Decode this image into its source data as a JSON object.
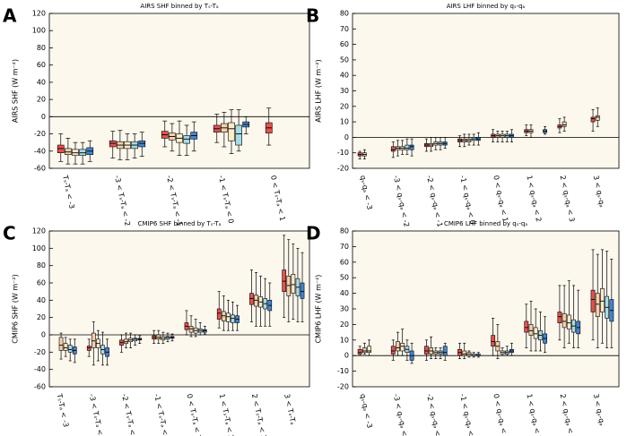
{
  "chart_data": [
    {
      "type": "box",
      "panel": "A",
      "title": "AIRS SHF binned by Tₛ-Tₐ",
      "ylabel": "AIRS SHF (W m⁻²)",
      "categories": [
        "Tₛ-Tₐ < -3",
        "-3 < Tₛ-Tₐ < -2",
        "-2 < Tₛ-Tₐ < -1",
        "-1 < Tₛ-Tₐ < 0",
        "0 < Tₛ-Tₐ < 1"
      ],
      "ylim": [
        -60,
        120
      ],
      "yticks": [
        -60,
        -40,
        -20,
        0,
        20,
        40,
        60,
        80,
        100,
        120
      ],
      "series": [
        {
          "color": "#e8504c",
          "values": [
            [
              -52,
              -42,
              -37,
              -33,
              -20
            ],
            [
              -48,
              -35,
              -31,
              -28,
              -17
            ],
            [
              -35,
              -25,
              -21,
              -17,
              -5
            ],
            [
              -30,
              -18,
              -14,
              -10,
              3
            ],
            [
              -33,
              -19,
              -13,
              -7,
              10
            ]
          ]
        },
        {
          "color": "#f8cfa8",
          "values": [
            [
              -55,
              -44,
              -41,
              -37,
              -25
            ],
            [
              -50,
              -37,
              -33,
              -29,
              -16
            ],
            [
              -40,
              -27,
              -23,
              -19,
              -8
            ],
            [
              -35,
              -18,
              -13,
              -8,
              5
            ],
            null
          ]
        },
        {
          "color": "#fdebc9",
          "values": [
            [
              -55,
              -45,
              -42,
              -38,
              -30
            ],
            [
              -50,
              -37,
              -33,
              -29,
              -20
            ],
            [
              -45,
              -30,
              -25,
              -20,
              -5
            ],
            [
              -43,
              -28,
              -14,
              -7,
              8
            ],
            null
          ]
        },
        {
          "color": "#a6dbe8",
          "values": [
            [
              -55,
              -45,
              -42,
              -38,
              -30
            ],
            [
              -48,
              -37,
              -33,
              -29,
              -20
            ],
            [
              -45,
              -31,
              -26,
              -22,
              -10
            ],
            [
              -40,
              -33,
              -20,
              -10,
              8
            ],
            null
          ]
        },
        {
          "color": "#3f86d4",
          "values": [
            [
              -52,
              -44,
              -40,
              -36,
              -28
            ],
            [
              -46,
              -35,
              -31,
              -28,
              -18
            ],
            [
              -40,
              -26,
              -22,
              -18,
              -6
            ],
            [
              -20,
              -12,
              -9,
              -6,
              0
            ],
            null
          ]
        }
      ]
    },
    {
      "type": "box",
      "panel": "B",
      "title": "AIRS LHF binned by qₛ-qₐ",
      "ylabel": "AIRS LHF (W m⁻²)",
      "categories": [
        "qₛ-qₐ < -3",
        "-3 < qₛ-qₐ < -2",
        "-2 < qₛ-qₐ < -1",
        "-1 < qₛ-qₐ < 0",
        "0 < qₛ-qₐ < 1",
        "1 < qₛ-qₐ < 2",
        "2 < qₛ-qₐ < 3",
        "3 < qₛ-qₐ"
      ],
      "ylim": [
        -20,
        80
      ],
      "yticks": [
        -20,
        -10,
        0,
        10,
        20,
        30,
        40,
        50,
        60,
        70,
        80
      ],
      "series": [
        {
          "color": "#e8504c",
          "values": [
            [
              -14,
              -12,
              -11,
              -10,
              -9
            ],
            [
              -13,
              -9,
              -8,
              -6,
              -3
            ],
            [
              -9,
              -6,
              -5,
              -4,
              -1
            ],
            [
              -6,
              -3,
              -2,
              -1,
              1
            ],
            [
              -3,
              0,
              1,
              2,
              5
            ],
            [
              1,
              3,
              4,
              5,
              8
            ],
            [
              3,
              6,
              7,
              8,
              12
            ],
            [
              4,
              10,
              12,
              13,
              18
            ]
          ]
        },
        {
          "color": "#f8cfa8",
          "values": [
            [
              -14,
              -12,
              -11,
              -10,
              -8
            ],
            [
              -12,
              -8,
              -7,
              -6,
              -2
            ],
            [
              -9,
              -6,
              -5,
              -4,
              0
            ],
            [
              -6,
              -3,
              -2,
              -1,
              2
            ],
            [
              -3,
              0,
              1,
              2,
              4
            ],
            [
              0,
              3,
              4,
              5,
              8
            ],
            [
              4,
              7,
              8,
              10,
              13
            ],
            [
              7,
              11,
              13,
              14,
              19
            ]
          ]
        },
        {
          "color": "#fdebc9",
          "values": [
            null,
            [
              -11,
              -8,
              -7,
              -6,
              -2
            ],
            [
              -8,
              -5,
              -4,
              -3,
              0
            ],
            [
              -5,
              -3,
              -2,
              -1,
              2
            ],
            [
              -3,
              0,
              1,
              2,
              4
            ],
            null,
            null,
            null
          ]
        },
        {
          "color": "#a6dbe8",
          "values": [
            null,
            [
              -11,
              -8,
              -7,
              -5,
              -1
            ],
            [
              -8,
              -5,
              -4,
              -3,
              0
            ],
            [
              -5,
              -2,
              -1,
              0,
              2
            ],
            [
              -3,
              0,
              1,
              2,
              4
            ],
            null,
            null,
            null
          ]
        },
        {
          "color": "#3f86d4",
          "values": [
            null,
            [
              -12,
              -8,
              -6,
              -5,
              -1
            ],
            [
              -7,
              -5,
              -4,
              -3,
              0
            ],
            [
              -5,
              -2,
              -1,
              0,
              3
            ],
            [
              -3,
              0,
              1,
              2,
              5
            ],
            [
              2,
              3,
              4,
              5,
              7
            ],
            null,
            null
          ]
        }
      ]
    },
    {
      "type": "box",
      "panel": "C",
      "title": "CMIP6 SHF binned by Tₛ-Tₐ",
      "ylabel": "CMIP6 SHF (W m⁻²)",
      "categories": [
        "Tₛ-Tₐ < -3",
        "-3 < Tₛ-Tₐ < -2",
        "-2 < Tₛ-Tₐ < -1",
        "-1 < Tₛ-Tₐ < 0",
        "0 < Tₛ-Tₐ < 1",
        "1 < Tₛ-Tₐ < 2",
        "2 < Tₛ-Tₐ < 3",
        "3 < Tₛ-Tₐ"
      ],
      "ylim": [
        -60,
        120
      ],
      "yticks": [
        -60,
        -40,
        -20,
        0,
        20,
        40,
        60,
        80,
        100,
        120
      ],
      "series": [
        {
          "color": "#e8504c",
          "values": [
            null,
            [
              -25,
              -18,
              -15,
              -13,
              -5
            ],
            [
              -20,
              -12,
              -9,
              -6,
              0
            ],
            [
              -10,
              -5,
              -3,
              -1,
              5
            ],
            [
              0,
              6,
              10,
              14,
              28
            ],
            [
              8,
              18,
              25,
              30,
              50
            ],
            [
              15,
              35,
              42,
              48,
              75
            ],
            [
              20,
              50,
              62,
              75,
              115
            ]
          ]
        },
        {
          "color": "#f8cfa8",
          "values": [
            [
              -28,
              -18,
              -12,
              -3,
              2
            ],
            [
              -35,
              -15,
              -7,
              2,
              15
            ],
            [
              -15,
              -10,
              -8,
              -5,
              2
            ],
            [
              -10,
              -5,
              -3,
              0,
              5
            ],
            [
              -2,
              3,
              7,
              10,
              22
            ],
            [
              5,
              16,
              22,
              27,
              45
            ],
            [
              10,
              33,
              40,
              46,
              72
            ],
            [
              15,
              45,
              57,
              68,
              110
            ]
          ]
        },
        {
          "color": "#fdebc9",
          "values": [
            [
              -25,
              -18,
              -15,
              -10,
              -3
            ],
            [
              -30,
              -15,
              -10,
              -5,
              5
            ],
            [
              -15,
              -8,
              -6,
              -4,
              2
            ],
            [
              -10,
              -6,
              -4,
              -2,
              3
            ],
            [
              -2,
              2,
              5,
              8,
              18
            ],
            [
              5,
              15,
              21,
              25,
              40
            ],
            [
              10,
              32,
              38,
              44,
              68
            ],
            [
              18,
              48,
              58,
              70,
              105
            ]
          ]
        },
        {
          "color": "#a6dbe8",
          "values": [
            [
              -30,
              -20,
              -17,
              -12,
              -5
            ],
            [
              -35,
              -22,
              -17,
              -12,
              3
            ],
            [
              -12,
              -7,
              -5,
              -4,
              0
            ],
            [
              -8,
              -5,
              -3,
              -2,
              2
            ],
            [
              0,
              3,
              5,
              7,
              14
            ],
            [
              5,
              14,
              19,
              23,
              38
            ],
            [
              10,
              30,
              36,
              42,
              65
            ],
            [
              15,
              45,
              55,
              65,
              100
            ]
          ]
        },
        {
          "color": "#3f86d4",
          "values": [
            [
              -32,
              -22,
              -18,
              -14,
              -5
            ],
            [
              -35,
              -25,
              -20,
              -15,
              -5
            ],
            [
              -10,
              -6,
              -5,
              -4,
              -1
            ],
            [
              -7,
              -4,
              -3,
              -2,
              1
            ],
            [
              1,
              3,
              5,
              6,
              10
            ],
            [
              5,
              14,
              18,
              22,
              34
            ],
            [
              10,
              28,
              34,
              40,
              60
            ],
            [
              15,
              42,
              50,
              60,
              95
            ]
          ]
        }
      ]
    },
    {
      "type": "box",
      "panel": "D",
      "title": "CMIP6 LHF binned by qₛ-qₐ",
      "ylabel": "CMIP6 LHF (W m⁻²)",
      "categories": [
        "qₛ-qₐ < -3",
        "-3 < qₛ-qₐ < -2",
        "-2 < qₛ-qₐ < -1",
        "-1 < qₛ-qₐ < 0",
        "0 < qₛ-qₐ < 1",
        "1 < qₛ-qₐ < 2",
        "2 < qₛ-qₐ < 3",
        "3 < qₛ-qₐ"
      ],
      "ylim": [
        -20,
        80
      ],
      "yticks": [
        -20,
        -10,
        0,
        10,
        20,
        30,
        40,
        50,
        60,
        70,
        80
      ],
      "series": [
        {
          "color": "#e8504c",
          "values": [
            [
              0,
              1,
              2,
              4,
              6
            ],
            [
              -3,
              1,
              3,
              6,
              10
            ],
            [
              -3,
              1,
              3,
              6,
              10
            ],
            [
              -2,
              0,
              2,
              4,
              8
            ],
            [
              0,
              6,
              9,
              13,
              24
            ],
            [
              5,
              15,
              18,
              22,
              33
            ],
            [
              10,
              21,
              25,
              28,
              45
            ],
            [
              10,
              28,
              36,
              42,
              68
            ]
          ]
        },
        {
          "color": "#f8cfa8",
          "values": [
            [
              1,
              2,
              3,
              5,
              8
            ],
            [
              0,
              3,
              5,
              9,
              15
            ],
            [
              -2,
              1,
              3,
              5,
              12
            ],
            [
              -2,
              0,
              1,
              3,
              8
            ],
            [
              -2,
              3,
              6,
              9,
              20
            ],
            [
              3,
              13,
              16,
              20,
              35
            ],
            [
              5,
              18,
              22,
              27,
              45
            ],
            [
              5,
              25,
              33,
              40,
              65
            ]
          ]
        },
        {
          "color": "#fdebc9",
          "values": [
            [
              0,
              2,
              3,
              6,
              10
            ],
            [
              0,
              3,
              6,
              8,
              17
            ],
            [
              -2,
              1,
              2,
              3,
              5
            ],
            [
              -1,
              0,
              1,
              2,
              3
            ],
            [
              0,
              1,
              2,
              3,
              5
            ],
            [
              3,
              11,
              14,
              18,
              30
            ],
            [
              8,
              17,
              21,
              26,
              48
            ],
            [
              8,
              28,
              35,
              43,
              68
            ]
          ]
        },
        {
          "color": "#a6dbe8",
          "values": [
            null,
            [
              -3,
              2,
              4,
              6,
              10
            ],
            [
              -2,
              1,
              2,
              3,
              5
            ],
            [
              -1,
              0,
              0,
              1,
              2
            ],
            [
              0,
              1,
              2,
              3,
              6
            ],
            [
              3,
              10,
              13,
              16,
              28
            ],
            [
              5,
              15,
              19,
              23,
              45
            ],
            [
              5,
              24,
              31,
              38,
              67
            ]
          ]
        },
        {
          "color": "#3f86d4",
          "values": [
            null,
            [
              -5,
              -3,
              0,
              3,
              8
            ],
            [
              -3,
              0,
              2,
              6,
              8
            ],
            [
              -1,
              0,
              0,
              1,
              2
            ],
            [
              0,
              2,
              3,
              4,
              8
            ],
            [
              2,
              8,
              11,
              14,
              25
            ],
            [
              5,
              14,
              18,
              22,
              42
            ],
            [
              5,
              22,
              29,
              36,
              62
            ]
          ]
        }
      ]
    }
  ]
}
